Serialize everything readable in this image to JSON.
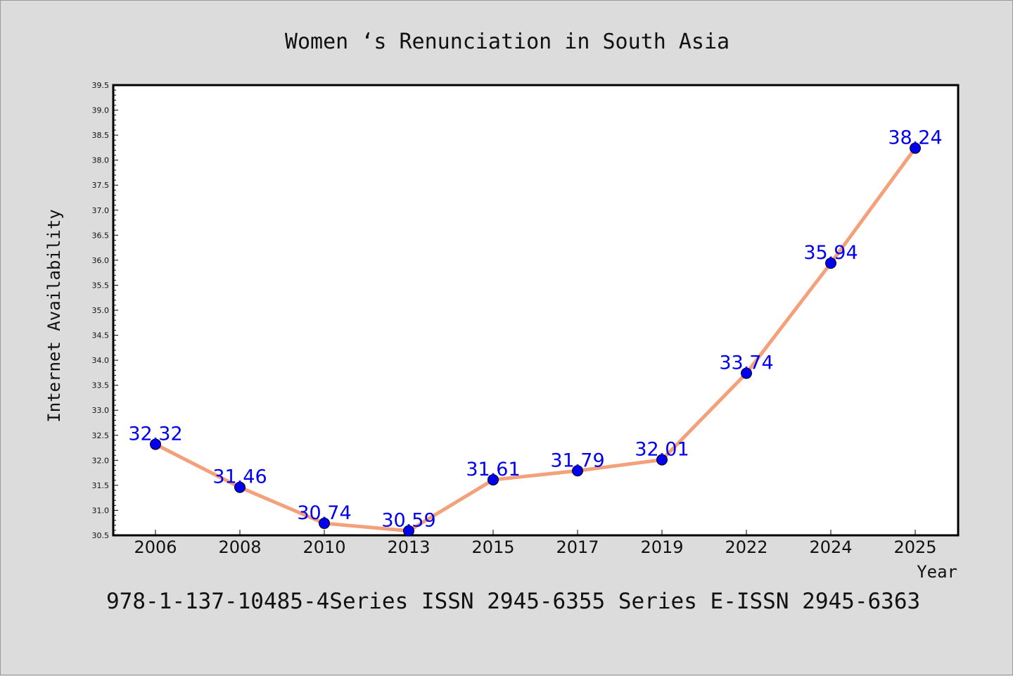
{
  "chart_data": {
    "type": "line",
    "title": "Women ‘s Renunciation in South Asia",
    "xlabel": "Year",
    "ylabel": "Internet Availability",
    "categories": [
      "2006",
      "2008",
      "2010",
      "2013",
      "2015",
      "2017",
      "2019",
      "2022",
      "2024",
      "2025"
    ],
    "values": [
      32.32,
      31.46,
      30.74,
      30.59,
      31.61,
      31.79,
      32.01,
      33.74,
      35.94,
      38.24
    ],
    "data_labels": [
      "32.32",
      "31.46",
      "30.74",
      "30.59",
      "31.61",
      "31.79",
      "32.01",
      "33.74",
      "35.94",
      "38.24"
    ],
    "ylim": [
      30.5,
      39.5
    ],
    "yticks": [
      "30.5",
      "31.0",
      "31.5",
      "32.0",
      "32.5",
      "33.0",
      "33.5",
      "34.0",
      "34.5",
      "35.0",
      "35.5",
      "36.0",
      "36.5",
      "37.0",
      "37.5",
      "38.0",
      "38.5",
      "39.0",
      "39.5"
    ],
    "grid": false,
    "line_color": "#f4a07a",
    "marker_color": "#0000ee",
    "label_color": "#0000ee"
  },
  "footer": "978-1-137-10485-4Series ISSN 2945-6355 Series E-ISSN 2945-6363"
}
